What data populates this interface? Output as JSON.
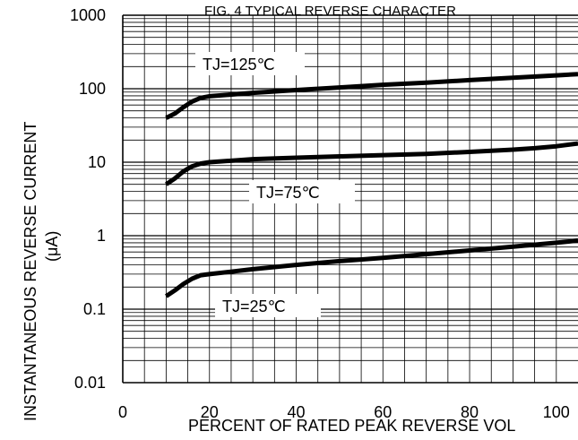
{
  "chart_data": {
    "type": "line",
    "title": "FIG. 4 TYPICAL REVERSE CHARACTER",
    "xlabel": "PERCENT OF RATED PEAK REVERSE VOL",
    "ylabel": "INSTANTANEOUS REVERSE CURRENT",
    "ylabel_unit": "(μA)",
    "x_ticks": [
      "0",
      "20",
      "40",
      "60",
      "80",
      "100"
    ],
    "y_ticks": [
      "0.01",
      "0.1",
      "1",
      "10",
      "100",
      "1000"
    ],
    "xlim": [
      0,
      105
    ],
    "ylim": [
      0.01,
      1000
    ],
    "y_scale": "log",
    "grid": true,
    "series": [
      {
        "name": "TJ=125℃",
        "x": [
          10,
          12,
          14,
          16,
          18,
          20,
          30,
          40,
          50,
          60,
          70,
          80,
          90,
          100,
          105
        ],
        "y": [
          40,
          46,
          56,
          67,
          75,
          79,
          88,
          96,
          104,
          113,
          121,
          131,
          141,
          152,
          158
        ]
      },
      {
        "name": "TJ=75℃",
        "x": [
          10,
          12,
          14,
          16,
          18,
          20,
          30,
          40,
          50,
          60,
          70,
          80,
          90,
          95,
          100,
          105
        ],
        "y": [
          5,
          6,
          7.5,
          8.8,
          9.6,
          10,
          11,
          11.5,
          12,
          12.5,
          13,
          13.8,
          14.8,
          15.5,
          16.5,
          18
        ]
      },
      {
        "name": "TJ=25℃",
        "x": [
          10,
          12,
          14,
          16,
          18,
          20,
          30,
          40,
          50,
          60,
          70,
          80,
          90,
          100,
          105
        ],
        "y": [
          0.15,
          0.18,
          0.22,
          0.26,
          0.29,
          0.3,
          0.35,
          0.4,
          0.45,
          0.5,
          0.56,
          0.63,
          0.71,
          0.8,
          0.86
        ]
      }
    ]
  }
}
